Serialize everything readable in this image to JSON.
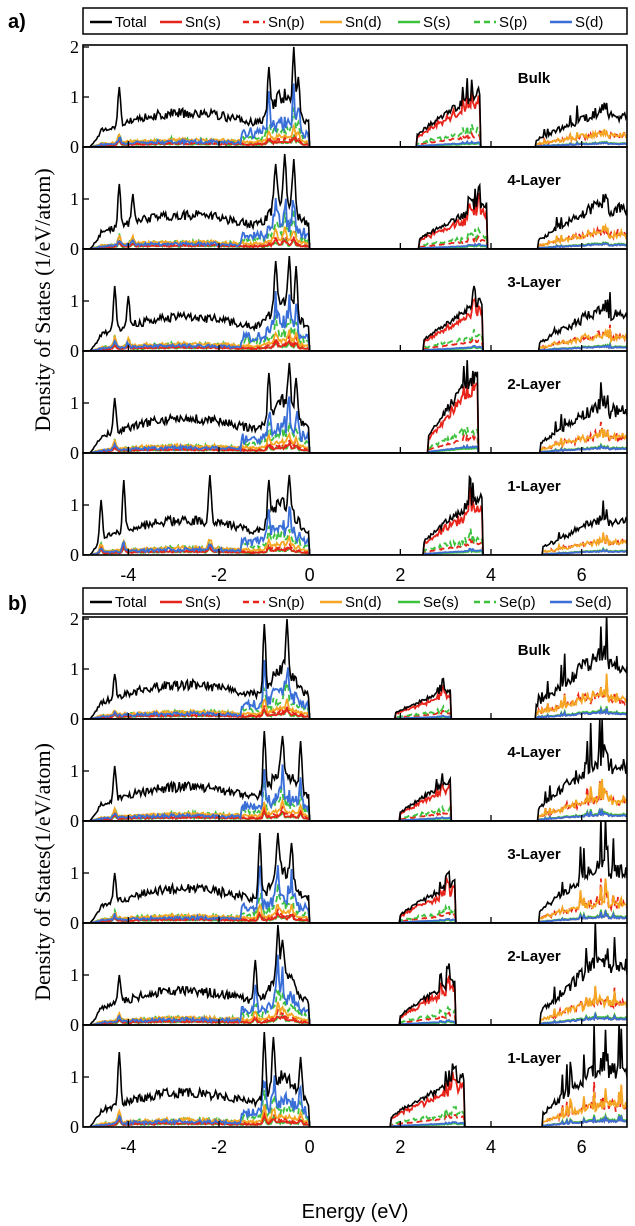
{
  "colors": {
    "total": "#000000",
    "sn_s": "#e8231a",
    "sn_p": "#e8231a",
    "sn_d": "#f5a623",
    "x_s": "#3cc23c",
    "x_p": "#3cc23c",
    "x_d": "#3a6fd8"
  },
  "chart_data": [
    {
      "type": "line",
      "panel_label": "a)",
      "xlabel": "",
      "ylabel": "Density of States (1/eV/atom)",
      "xlim": [
        -5,
        7
      ],
      "xticks": [
        -4,
        -2,
        0,
        2,
        4,
        6
      ],
      "ylim": [
        0,
        2
      ],
      "yticks_top": [
        0,
        1,
        2
      ],
      "yticks": [
        0,
        1
      ],
      "legend": [
        "Total",
        "Sn(s)",
        "Sn(p)",
        "Sn(d)",
        "S(s)",
        "S(p)",
        "S(d)"
      ],
      "legend_placement": "top",
      "subplots": [
        {
          "label": "Bulk",
          "vb_spikes": [
            [
              -4.2,
              1.2
            ],
            [
              -0.9,
              1.6
            ],
            [
              -0.35,
              2.0
            ],
            [
              -0.25,
              1.4
            ]
          ],
          "cb1": [
            2.35,
            3.75,
            1.1
          ],
          "cb2_peak": 1.0,
          "shift": 0.0
        },
        {
          "label": "4-Layer",
          "vb_spikes": [
            [
              -4.2,
              1.3
            ],
            [
              -3.9,
              1.1
            ],
            [
              -0.75,
              1.7
            ],
            [
              -0.55,
              1.9
            ],
            [
              -0.35,
              1.8
            ]
          ],
          "cb1": [
            2.4,
            3.9,
            0.9
          ],
          "cb2_peak": 1.3,
          "shift": 0.1
        },
        {
          "label": "3-Layer",
          "vb_spikes": [
            [
              -4.3,
              1.3
            ],
            [
              -4.0,
              1.1
            ],
            [
              -0.75,
              1.8
            ],
            [
              -0.45,
              1.9
            ],
            [
              -0.3,
              1.7
            ]
          ],
          "cb1": [
            2.5,
            3.8,
            1.0
          ],
          "cb2_peak": 1.2,
          "shift": 0.15
        },
        {
          "label": "2-Layer",
          "vb_spikes": [
            [
              -4.3,
              1.1
            ],
            [
              -0.9,
              1.6
            ],
            [
              -0.45,
              1.8
            ],
            [
              -0.3,
              1.5
            ]
          ],
          "cb1": [
            2.6,
            3.7,
            1.6
          ],
          "cb2_peak": 1.4,
          "shift": 0.2
        },
        {
          "label": "1-Layer",
          "vb_spikes": [
            [
              -4.6,
              1.1
            ],
            [
              -4.1,
              1.5
            ],
            [
              -2.2,
              1.6
            ],
            [
              -0.9,
              1.5
            ],
            [
              -0.45,
              1.6
            ]
          ],
          "cb1": [
            2.5,
            3.8,
            1.2
          ],
          "cb2_peak": 1.1,
          "shift": 0.3
        }
      ]
    },
    {
      "type": "line",
      "panel_label": "b)",
      "xlabel": "Energy (eV)",
      "ylabel": "Density of States(1/eV/atom)",
      "xlim": [
        -5,
        7
      ],
      "xticks": [
        -4,
        -2,
        0,
        2,
        4,
        6
      ],
      "ylim": [
        0,
        2
      ],
      "yticks_top": [
        0,
        1,
        2
      ],
      "yticks": [
        0,
        1
      ],
      "legend": [
        "Total",
        "Sn(s)",
        "Sn(p)",
        "Sn(d)",
        "Se(s)",
        "Se(p)",
        "Se(d)"
      ],
      "legend_placement": "top",
      "subplots": [
        {
          "label": "Bulk",
          "vb_spikes": [
            [
              -4.3,
              0.9
            ],
            [
              -1.0,
              1.9
            ],
            [
              -0.5,
              2.0
            ]
          ],
          "cb1": [
            1.9,
            3.1,
            0.6
          ],
          "cb2_peak": 1.8,
          "shift": 0.0
        },
        {
          "label": "4-Layer",
          "vb_spikes": [
            [
              -4.3,
              1.1
            ],
            [
              -1.0,
              1.8
            ],
            [
              -0.6,
              1.7
            ],
            [
              -0.2,
              1.6
            ]
          ],
          "cb1": [
            2.0,
            3.1,
            0.8
          ],
          "cb2_peak": 1.8,
          "shift": 0.1
        },
        {
          "label": "3-Layer",
          "vb_spikes": [
            [
              -4.3,
              1.0
            ],
            [
              -1.1,
              1.8
            ],
            [
              -0.7,
              1.8
            ],
            [
              -0.4,
              1.6
            ]
          ],
          "cb1": [
            2.0,
            3.2,
            0.8
          ],
          "cb2_peak": 1.7,
          "shift": 0.15
        },
        {
          "label": "2-Layer",
          "vb_spikes": [
            [
              -4.2,
              1.0
            ],
            [
              -1.2,
              1.3
            ],
            [
              -0.7,
              2.0
            ],
            [
              -0.6,
              1.7
            ]
          ],
          "cb1": [
            2.0,
            3.2,
            0.9
          ],
          "cb2_peak": 1.9,
          "shift": 0.2
        },
        {
          "label": "1-Layer",
          "vb_spikes": [
            [
              -4.2,
              1.5
            ],
            [
              -1.0,
              1.9
            ],
            [
              -0.8,
              1.8
            ],
            [
              -0.2,
              1.4
            ]
          ],
          "cb1": [
            1.8,
            3.4,
            1.0
          ],
          "cb2_peak": 1.9,
          "shift": 0.3
        }
      ]
    }
  ]
}
